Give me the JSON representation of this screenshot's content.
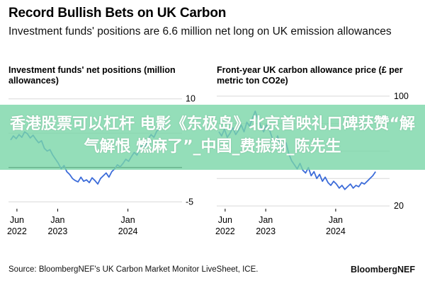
{
  "header": {
    "title": "Record Bullish Bets on UK Carbon",
    "subtitle": "Investment funds' positions are 6.6 million net long on UK emission allowances"
  },
  "overlay": {
    "text": "香港股票可以杠杆 电影《东极岛》北京首映礼口碑获赞“解气解恨 燃麻了”_中国_费振翔_陈先生"
  },
  "footer": {
    "source": "Source: BloombergNEF's UK Carbon Market Monitor LiveSheet, ICE.",
    "brand": "BloombergNEF"
  },
  "colors": {
    "line": "#3b6bd9",
    "zero_line": "#000000",
    "grid": "#d9d9d9",
    "overlay": "#79d6a7"
  },
  "chart_data": [
    {
      "type": "line",
      "title": "Investment funds' net positions (million allowances)",
      "y_axis_side": "right",
      "ylim": [
        -6,
        11
      ],
      "yticks": [
        10,
        5,
        0,
        -5
      ],
      "yticks_shown": [
        "10",
        "-5"
      ],
      "x_ticks": [
        {
          "x": 2022.42,
          "label": [
            "Jun",
            "2022"
          ]
        },
        {
          "x": 2023.0,
          "label": [
            "Jan",
            "2023"
          ]
        },
        {
          "x": 2024.0,
          "label": [
            "Jan",
            "2024"
          ]
        }
      ],
      "xlim": [
        2022.3,
        2024.75
      ],
      "series": [
        {
          "x": [
            2022.33,
            2022.37,
            2022.41,
            2022.45,
            2022.49,
            2022.53,
            2022.57,
            2022.61,
            2022.65,
            2022.69,
            2022.73,
            2022.77,
            2022.81,
            2022.85,
            2022.89,
            2022.93,
            2022.97,
            2023.01,
            2023.05,
            2023.09,
            2023.13,
            2023.17,
            2023.21,
            2023.25,
            2023.29,
            2023.33,
            2023.37,
            2023.41,
            2023.45,
            2023.49,
            2023.53,
            2023.57,
            2023.61,
            2023.65,
            2023.69,
            2023.73,
            2023.77,
            2023.81,
            2023.85,
            2023.89,
            2023.93,
            2023.97,
            2024.01,
            2024.05,
            2024.09,
            2024.13,
            2024.17,
            2024.21,
            2024.25,
            2024.29,
            2024.33,
            2024.37,
            2024.41,
            2024.45,
            2024.49,
            2024.53,
            2024.57
          ],
          "y": [
            4.0,
            4.6,
            4.2,
            4.8,
            4.4,
            5.2,
            4.9,
            4.3,
            4.7,
            4.1,
            3.6,
            3.9,
            2.8,
            2.4,
            2.6,
            1.8,
            1.2,
            0.6,
            -0.2,
            0.3,
            -0.6,
            -1.0,
            -1.6,
            -1.9,
            -2.1,
            -1.4,
            -2.0,
            -1.8,
            -2.2,
            -1.5,
            -1.9,
            -2.4,
            -1.6,
            -1.2,
            -0.8,
            -1.4,
            -0.6,
            -0.2,
            0.4,
            0.1,
            0.6,
            1.2,
            0.9,
            1.6,
            2.2,
            1.8,
            2.9,
            3.4,
            3.0,
            4.2,
            4.8,
            4.4,
            5.3,
            5.6,
            6.0,
            6.3,
            6.6
          ]
        }
      ]
    },
    {
      "type": "line",
      "title": "Front-year UK carbon allowance price (£ per metric ton CO2e)",
      "y_axis_side": "right",
      "ylim": [
        18,
        103
      ],
      "yticks": [
        100,
        80,
        60,
        40,
        20
      ],
      "yticks_shown": [
        "100",
        "20"
      ],
      "x_ticks": [
        {
          "x": 2022.42,
          "label": [
            "Jun",
            "2022"
          ]
        },
        {
          "x": 2023.0,
          "label": [
            "Jan",
            "2023"
          ]
        },
        {
          "x": 2024.0,
          "label": [
            "Jan",
            "2024"
          ]
        }
      ],
      "xlim": [
        2022.3,
        2024.75
      ],
      "series": [
        {
          "x": [
            2022.33,
            2022.37,
            2022.41,
            2022.45,
            2022.49,
            2022.53,
            2022.57,
            2022.61,
            2022.65,
            2022.69,
            2022.73,
            2022.77,
            2022.81,
            2022.85,
            2022.89,
            2022.93,
            2022.97,
            2023.01,
            2023.05,
            2023.09,
            2023.13,
            2023.17,
            2023.21,
            2023.25,
            2023.29,
            2023.33,
            2023.37,
            2023.41,
            2023.45,
            2023.49,
            2023.53,
            2023.57,
            2023.61,
            2023.65,
            2023.69,
            2023.73,
            2023.77,
            2023.81,
            2023.85,
            2023.89,
            2023.93,
            2023.97,
            2024.01,
            2024.05,
            2024.09,
            2024.13,
            2024.17,
            2024.21,
            2024.25,
            2024.29,
            2024.33,
            2024.37,
            2024.41,
            2024.45,
            2024.49,
            2024.53,
            2024.57
          ],
          "y": [
            74,
            71,
            76,
            70,
            73,
            77,
            72,
            75,
            79,
            74,
            81,
            78,
            84,
            89,
            83,
            78,
            74,
            79,
            76,
            70,
            66,
            71,
            65,
            62,
            66,
            58,
            53,
            50,
            47,
            51,
            46,
            44,
            48,
            42,
            45,
            40,
            43,
            38,
            41,
            37,
            35,
            38,
            36,
            33,
            35,
            32,
            34,
            36,
            33,
            35,
            34,
            37,
            36,
            38,
            40,
            42,
            45
          ]
        }
      ]
    }
  ]
}
